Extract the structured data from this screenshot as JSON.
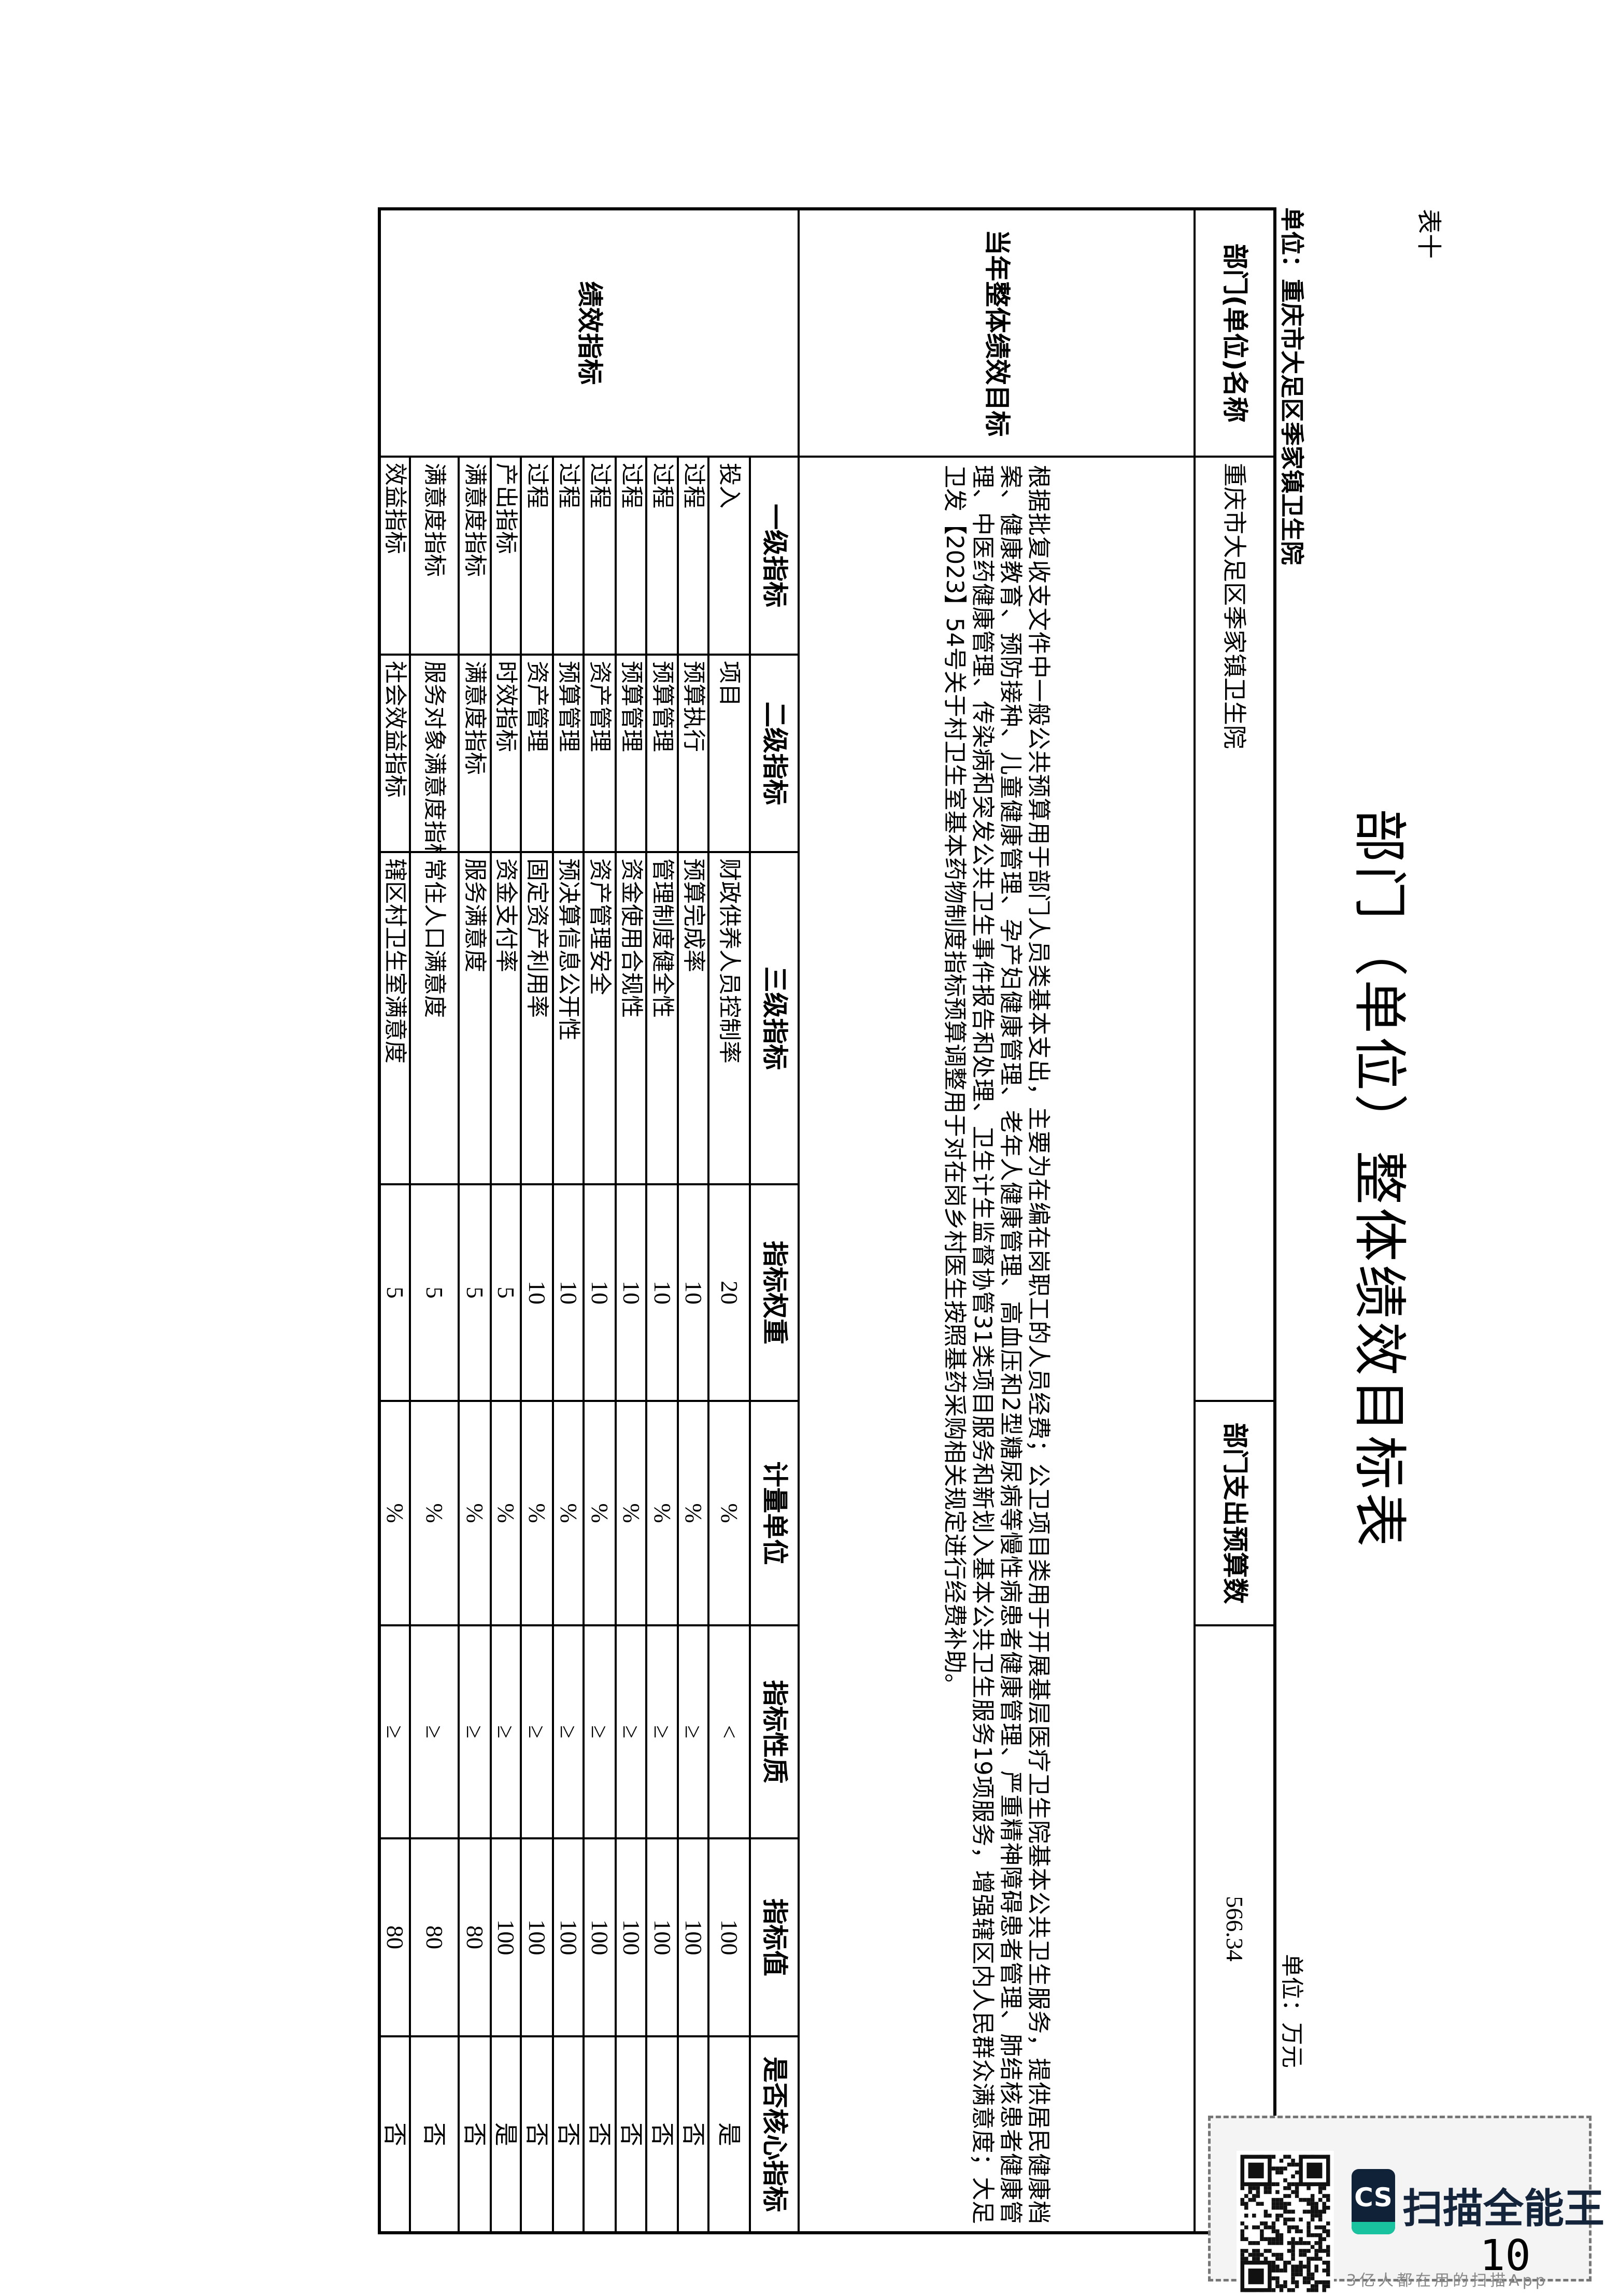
{
  "doc": {
    "table_no": "表十",
    "title": "部门（单位）整体绩效目标表",
    "unit_org": "单位：重庆市大足区季家镇卫生院",
    "unit_money": "单位：万元"
  },
  "table": {
    "dept_name_label": "部门(单位)名称",
    "dept_name": "重庆市大足区季家镇卫生院",
    "budget_label": "部门支出预算数",
    "budget_value": "566.34",
    "target_label": "当年整体绩效目标",
    "target_text": "根据批复收支文件中一般公共预算用于部门人员类基本支出，主要为在编在岗职工的人员经费；公卫项目类用于开展基层医疗卫生院基本公共卫生服务，提供居民健康档案、健康教育、预防接种、儿童健康管理、孕产妇健康管理、老年人健康管理、高血压和2型糖尿病等慢性病患者健康管理、严重精神障碍患者管理、肺结核患者健康管理、中医药健康管理、传染病和突发公共卫生事件报告和处理、卫生计生监督协管31类项目服务和新划入基本公共卫生服务19项服务，增强辖区内人民群众满意度；大足卫发【2023】54号关于村卫生室基本药物制度指标预算调整用于对在岗乡村医生按照基药采购相关规定进行经费补助。",
    "perf_label": "绩效指标",
    "headers": [
      "一级指标",
      "二级指标",
      "三级指标",
      "指标权重",
      "计量单位",
      "指标性质",
      "指标值",
      "是否核心指标"
    ],
    "rows": [
      {
        "l1": "投入",
        "l2": "项目",
        "l3": "财政供养人员控制率",
        "weight": "20",
        "unit": "%",
        "nature": "<",
        "value": "100",
        "core": "是"
      },
      {
        "l1": "过程",
        "l2": "预算执行",
        "l3": "预算完成率",
        "weight": "10",
        "unit": "%",
        "nature": "≥",
        "value": "100",
        "core": "否"
      },
      {
        "l1": "过程",
        "l2": "预算管理",
        "l3": "管理制度健全性",
        "weight": "10",
        "unit": "%",
        "nature": "≥",
        "value": "100",
        "core": "否"
      },
      {
        "l1": "过程",
        "l2": "预算管理",
        "l3": "资金使用合规性",
        "weight": "10",
        "unit": "%",
        "nature": "≥",
        "value": "100",
        "core": "否"
      },
      {
        "l1": "过程",
        "l2": "资产管理",
        "l3": "资产管理安全",
        "weight": "10",
        "unit": "%",
        "nature": "≥",
        "value": "100",
        "core": "否"
      },
      {
        "l1": "过程",
        "l2": "预算管理",
        "l3": "预决算信息公开性",
        "weight": "10",
        "unit": "%",
        "nature": "≥",
        "value": "100",
        "core": "否"
      },
      {
        "l1": "过程",
        "l2": "资产管理",
        "l3": "固定资产利用率",
        "weight": "10",
        "unit": "%",
        "nature": "≥",
        "value": "100",
        "core": "否"
      },
      {
        "l1": "产出指标",
        "l2": "时效指标",
        "l3": "资金支付率",
        "weight": "5",
        "unit": "%",
        "nature": "≥",
        "value": "100",
        "core": "是"
      },
      {
        "l1": "满意度指标",
        "l2": "满意度指标",
        "l3": "服务满意度",
        "weight": "5",
        "unit": "%",
        "nature": "≥",
        "value": "80",
        "core": "否"
      },
      {
        "l1": "满意度指标",
        "l2": "服务对象满意度指标",
        "l3": "常住人口满意度",
        "weight": "5",
        "unit": "%",
        "nature": "≥",
        "value": "80",
        "core": "否"
      },
      {
        "l1": "效益指标",
        "l2": "社会效益指标",
        "l3": "辖区村卫生室满意度",
        "weight": "5",
        "unit": "%",
        "nature": "≥",
        "value": "80",
        "core": "否"
      }
    ]
  },
  "watermark": {
    "app_icon_text": "CS",
    "app_name": "扫描全能王",
    "slogan": "3亿人都在用的扫描App",
    "icon": "qr-code-icon",
    "brand_color": "#0f2238",
    "accent_color": "#19c3a0"
  },
  "page_number": "10"
}
